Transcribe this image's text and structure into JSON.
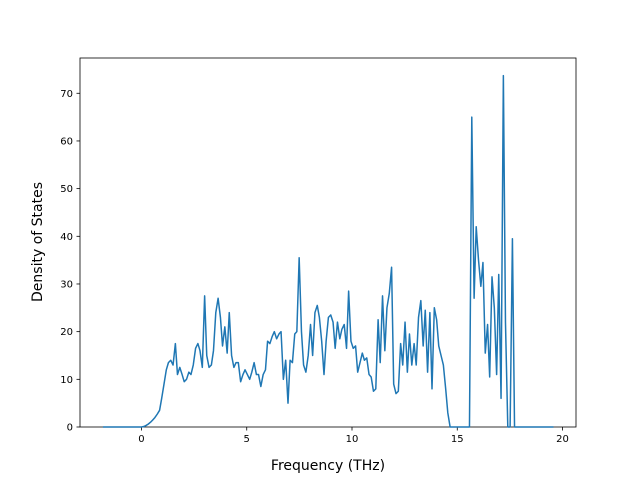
{
  "chart_data": {
    "type": "line",
    "xlabel": "Frequency (THz)",
    "ylabel": "Density of States",
    "xlim": [
      -2.92,
      20.64
    ],
    "ylim": [
      0,
      77.4
    ],
    "xticks": [
      0,
      5,
      10,
      15,
      20
    ],
    "yticks": [
      0,
      10,
      20,
      30,
      40,
      50,
      60,
      70
    ],
    "series": [
      {
        "color": "#1f77b4",
        "x": [
          -1.83,
          0,
          0.11,
          0.21,
          0.32,
          0.43,
          0.54,
          0.64,
          0.75,
          0.86,
          0.96,
          1.07,
          1.18,
          1.28,
          1.39,
          1.5,
          1.61,
          1.71,
          1.82,
          1.93,
          2.03,
          2.14,
          2.25,
          2.35,
          2.46,
          2.57,
          2.68,
          2.78,
          2.89,
          3.0,
          3.1,
          3.21,
          3.32,
          3.42,
          3.53,
          3.64,
          3.75,
          3.85,
          3.96,
          4.07,
          4.17,
          4.28,
          4.39,
          4.49,
          4.6,
          4.71,
          4.82,
          4.92,
          5.03,
          5.14,
          5.24,
          5.35,
          5.46,
          5.56,
          5.67,
          5.78,
          5.89,
          5.99,
          6.1,
          6.21,
          6.31,
          6.42,
          6.53,
          6.63,
          6.74,
          6.85,
          6.96,
          7.06,
          7.17,
          7.28,
          7.38,
          7.49,
          7.6,
          7.7,
          7.81,
          7.92,
          8.03,
          8.13,
          8.24,
          8.35,
          8.45,
          8.56,
          8.67,
          8.77,
          8.88,
          8.99,
          9.1,
          9.2,
          9.31,
          9.42,
          9.52,
          9.63,
          9.74,
          9.84,
          9.95,
          10.06,
          10.17,
          10.27,
          10.38,
          10.49,
          10.59,
          10.7,
          10.81,
          10.91,
          11.02,
          11.13,
          11.24,
          11.34,
          11.45,
          11.56,
          11.66,
          11.77,
          11.88,
          11.98,
          12.09,
          12.2,
          12.31,
          12.41,
          12.52,
          12.63,
          12.73,
          12.84,
          12.95,
          13.05,
          13.16,
          13.27,
          13.38,
          13.48,
          13.59,
          13.7,
          13.8,
          13.91,
          14.02,
          14.12,
          14.23,
          14.34,
          14.45,
          14.55,
          14.66,
          15.58,
          15.69,
          15.8,
          15.9,
          16.01,
          16.12,
          16.22,
          16.33,
          16.44,
          16.54,
          16.65,
          16.76,
          16.87,
          16.97,
          17.08,
          17.19,
          17.29,
          17.4,
          17.51,
          17.62,
          17.72,
          19.57
        ],
        "values": [
          0,
          0,
          0.1,
          0.3,
          0.6,
          1,
          1.5,
          2,
          2.7,
          3.5,
          6,
          9,
          12,
          13.5,
          14,
          13,
          17.5,
          11,
          12.5,
          11,
          9.5,
          10,
          11.5,
          11,
          13,
          16.5,
          17.5,
          16,
          12.5,
          27.5,
          15,
          12.5,
          13,
          16,
          24,
          27,
          23,
          17,
          21,
          15.5,
          24,
          15,
          12.5,
          13.5,
          13.5,
          9.5,
          11,
          12,
          11,
          10,
          11.5,
          13.5,
          11,
          11,
          8.5,
          11,
          12,
          18,
          17.5,
          19,
          20,
          18.5,
          19.5,
          20,
          10,
          14,
          5,
          14,
          13.5,
          19.5,
          20,
          35.5,
          20,
          13,
          11.5,
          15,
          21.5,
          15,
          24,
          25.5,
          23,
          18,
          11,
          18,
          23,
          23.5,
          22,
          16.5,
          22,
          18.5,
          20.5,
          21.5,
          16.5,
          28.5,
          18,
          16.5,
          17,
          11.5,
          13.5,
          15.5,
          14,
          14.5,
          11,
          10.5,
          7.5,
          8,
          22.5,
          13.5,
          27.5,
          16,
          25,
          28,
          33.5,
          9,
          7,
          7.5,
          17.5,
          13,
          22,
          11.5,
          19.5,
          13,
          17.5,
          13,
          23,
          26.5,
          17,
          24.5,
          11.5,
          24,
          8,
          25,
          22.5,
          17,
          15,
          13,
          8,
          3,
          0,
          0,
          65,
          27,
          42,
          35,
          29.5,
          34.5,
          15.5,
          21.5,
          10.5,
          31.5,
          25,
          11,
          32,
          6,
          73.7,
          22,
          0,
          0,
          39.5,
          0,
          0
        ]
      }
    ]
  }
}
